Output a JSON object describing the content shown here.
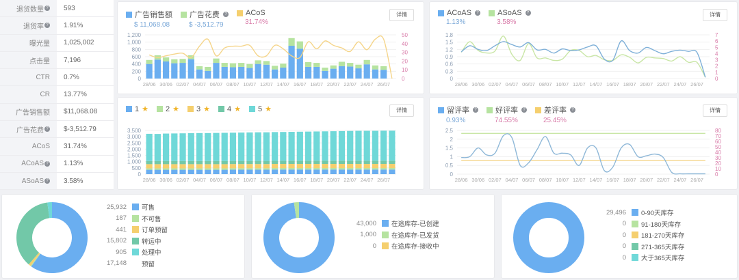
{
  "metrics": [
    {
      "label": "退货数量",
      "value": "593",
      "help": true
    },
    {
      "label": "退货率",
      "value": "1.91%",
      "help": true
    },
    {
      "label": "曝光量",
      "value": "1,025,002",
      "help": false
    },
    {
      "label": "点击量",
      "value": "7,196",
      "help": false
    },
    {
      "label": "CTR",
      "value": "0.7%",
      "help": false
    },
    {
      "label": "CR",
      "value": "13.77%",
      "help": false
    },
    {
      "label": "广告销售额",
      "value": "$11,068.08",
      "help": false
    },
    {
      "label": "广告花费",
      "value": "$-3,512.79",
      "help": true
    },
    {
      "label": "ACoS",
      "value": "31.74%",
      "help": false
    },
    {
      "label": "ACoAS",
      "value": "1.13%",
      "help": true
    },
    {
      "label": "ASoAS",
      "value": "3.58%",
      "help": true
    }
  ],
  "detail_label": "详情",
  "help_glyph": "?",
  "colors": {
    "blue": "#6aaef0",
    "green": "#b6e3a0",
    "yellow": "#f5cf6e",
    "teal": "#72c8a8",
    "cyan": "#6fd8d8",
    "axis_right": "#d87aa8",
    "axis_left": "#8a9bb0"
  },
  "ad_panel": {
    "legend": [
      {
        "label": "广告销售额",
        "value": "$ 11,068.08",
        "color": "#6aaef0",
        "value_color": "#7aa8d8",
        "help": false
      },
      {
        "label": "广告花费",
        "value": "$ -3,512.79",
        "color": "#b6e3a0",
        "value_color": "#7aa8d8",
        "help": true
      },
      {
        "label": "ACoS",
        "value": "31.74%",
        "color": "#f5cf6e",
        "value_color": "#d87aa8",
        "help": false
      }
    ]
  },
  "acoas_panel": {
    "legend": [
      {
        "label": "ACoAS",
        "value": "1.13%",
        "color": "#6aaef0",
        "value_color": "#7aa8d8",
        "help": true
      },
      {
        "label": "ASoAS",
        "value": "3.58%",
        "color": "#b6e3a0",
        "value_color": "#d87aa8",
        "help": true
      }
    ]
  },
  "star_panel": {
    "legend": [
      {
        "label": "1",
        "color": "#6aaef0"
      },
      {
        "label": "2",
        "color": "#b6e3a0"
      },
      {
        "label": "3",
        "color": "#f5cf6e"
      },
      {
        "label": "4",
        "color": "#72c8a8"
      },
      {
        "label": "5",
        "color": "#6fd8d8"
      }
    ],
    "star_glyph": "★"
  },
  "review_panel": {
    "legend": [
      {
        "label": "留评率",
        "value": "0.93%",
        "color": "#6aaef0",
        "value_color": "#7aa8d8",
        "help": true
      },
      {
        "label": "好评率",
        "value": "74.55%",
        "color": "#b6e3a0",
        "value_color": "#d87aa8",
        "help": true
      },
      {
        "label": "差评率",
        "value": "25.45%",
        "color": "#f5cf6e",
        "value_color": "#d87aa8",
        "help": true
      }
    ]
  },
  "inventory_pie": {
    "items": [
      {
        "num": "25,932",
        "label": "可售",
        "color": "#6aaef0"
      },
      {
        "num": "187",
        "label": "不可售",
        "color": "#b6e3a0"
      },
      {
        "num": "441",
        "label": "订单预留",
        "color": "#f5cf6e"
      },
      {
        "num": "15,802",
        "label": "转运中",
        "color": "#72c8a8"
      },
      {
        "num": "905",
        "label": "处理中",
        "color": "#6fd8d8"
      },
      {
        "num": "17,148",
        "label": "预留",
        "color": "transparent"
      }
    ]
  },
  "inbound_pie": {
    "items": [
      {
        "num": "43,000",
        "label": "在途库存-已创建",
        "color": "#6aaef0"
      },
      {
        "num": "1,000",
        "label": "在途库存-已发货",
        "color": "#b6e3a0"
      },
      {
        "num": "0",
        "label": "在途库存-接收中",
        "color": "#f5cf6e"
      }
    ]
  },
  "age_pie": {
    "items": [
      {
        "num": "29,496",
        "label": "0-90天库存",
        "color": "#6aaef0"
      },
      {
        "num": "0",
        "label": "91-180天库存",
        "color": "#b6e3a0"
      },
      {
        "num": "0",
        "label": "181-270天库存",
        "color": "#f5cf6e"
      },
      {
        "num": "0",
        "label": "271-365天库存",
        "color": "#72c8a8"
      },
      {
        "num": "0",
        "label": "大于365天库存",
        "color": "#6fd8d8"
      }
    ]
  },
  "chart_data": [
    {
      "type": "bar",
      "title": "广告销售额 / 广告花费 / ACoS",
      "stacked": true,
      "x": [
        "28/06",
        "29/06",
        "30/06",
        "01/07",
        "02/07",
        "03/07",
        "04/07",
        "05/07",
        "06/07",
        "07/07",
        "08/07",
        "09/07",
        "10/07",
        "11/07",
        "12/07",
        "13/07",
        "14/07",
        "15/07",
        "16/07",
        "17/07",
        "18/07",
        "19/07",
        "20/07",
        "21/07",
        "22/07",
        "23/07",
        "24/07",
        "25/07",
        "26/07",
        "27/07"
      ],
      "xticks": [
        "28/06",
        "30/06",
        "02/07",
        "04/07",
        "06/07",
        "08/07",
        "10/07",
        "12/07",
        "14/07",
        "16/07",
        "18/07",
        "20/07",
        "22/07",
        "24/07",
        "26/07"
      ],
      "series": [
        {
          "name": "广告销售额",
          "axis": "left",
          "values": [
            400,
            520,
            470,
            420,
            430,
            530,
            250,
            210,
            430,
            320,
            310,
            320,
            290,
            400,
            380,
            250,
            300,
            900,
            820,
            320,
            320,
            210,
            270,
            340,
            330,
            280,
            390,
            250,
            240,
            0
          ]
        },
        {
          "name": "广告花费",
          "axis": "left",
          "values": [
            110,
            120,
            110,
            110,
            110,
            110,
            90,
            110,
            120,
            110,
            110,
            110,
            110,
            100,
            100,
            100,
            110,
            210,
            200,
            130,
            110,
            90,
            90,
            120,
            100,
            100,
            120,
            110,
            100,
            0
          ]
        },
        {
          "name": "ACoS",
          "axis": "right",
          "type": "line",
          "values": [
            27,
            24,
            26,
            28,
            29,
            24,
            37,
            45,
            26,
            35,
            37,
            37,
            38,
            26,
            26,
            38,
            34,
            26,
            24,
            42,
            34,
            43,
            38,
            35,
            31,
            42,
            33,
            45,
            45,
            0
          ]
        }
      ],
      "ylim_left": [
        0,
        1200
      ],
      "yticks_left": [
        0,
        200,
        400,
        600,
        800,
        1000,
        1200
      ],
      "ylim_right": [
        0,
        50
      ],
      "yticks_right": [
        0,
        10,
        20,
        30,
        40,
        50
      ]
    },
    {
      "type": "line",
      "title": "ACoAS / ASoAS",
      "x": [
        "28/06",
        "29/06",
        "30/06",
        "01/07",
        "02/07",
        "03/07",
        "04/07",
        "05/07",
        "06/07",
        "07/07",
        "08/07",
        "09/07",
        "10/07",
        "11/07",
        "12/07",
        "13/07",
        "14/07",
        "15/07",
        "16/07",
        "17/07",
        "18/07",
        "19/07",
        "20/07",
        "21/07",
        "22/07",
        "23/07",
        "24/07",
        "25/07",
        "26/07",
        "27/07"
      ],
      "series": [
        {
          "name": "ACoAS",
          "axis": "left",
          "values": [
            1.1,
            1.35,
            1.2,
            1.15,
            1.35,
            1.52,
            1.4,
            1.3,
            1.48,
            1.18,
            1.2,
            1.05,
            1.22,
            1.15,
            1.18,
            1.3,
            1.35,
            0.8,
            0.75,
            1.55,
            1.15,
            1.05,
            1.28,
            1.15,
            1.02,
            1.12,
            1.17,
            1.12,
            1.08,
            0.05
          ]
        },
        {
          "name": "ASoAS",
          "axis": "right",
          "values": [
            4.2,
            5.9,
            4.5,
            4.1,
            4.4,
            6.8,
            3.9,
            2.9,
            5.6,
            3.3,
            3.3,
            2.9,
            3.1,
            4.5,
            4.5,
            3.5,
            3.7,
            3.0,
            2.9,
            3.8,
            3.4,
            2.5,
            3.4,
            3.3,
            3.2,
            2.8,
            3.5,
            2.6,
            2.6,
            0.2
          ]
        }
      ],
      "ylim_left": [
        0,
        1.8
      ],
      "yticks_left": [
        0,
        0.3,
        0.6,
        0.9,
        1.2,
        1.5,
        1.8
      ],
      "ylim_right": [
        0,
        7
      ],
      "yticks_right": [
        0,
        1,
        2,
        3,
        4,
        5,
        6,
        7
      ]
    },
    {
      "type": "bar",
      "title": "Star ratings",
      "stacked": true,
      "x": [
        "28/06",
        "29/06",
        "30/06",
        "01/07",
        "02/07",
        "03/07",
        "04/07",
        "05/07",
        "06/07",
        "07/07",
        "08/07",
        "09/07",
        "10/07",
        "11/07",
        "12/07",
        "13/07",
        "14/07",
        "15/07",
        "16/07",
        "17/07",
        "18/07",
        "19/07",
        "20/07",
        "21/07",
        "22/07",
        "23/07",
        "24/07",
        "25/07",
        "26/07",
        "27/07"
      ],
      "series": [
        {
          "name": "1★",
          "values": [
            350,
            350,
            350,
            350,
            350,
            350,
            350,
            350,
            350,
            350,
            360,
            360,
            360,
            360,
            360,
            370,
            370,
            370,
            370,
            370,
            370,
            370,
            370,
            370,
            370,
            370,
            370,
            370,
            370,
            370
          ]
        },
        {
          "name": "2★",
          "values": [
            120,
            120,
            120,
            120,
            120,
            120,
            120,
            120,
            120,
            120,
            120,
            120,
            120,
            120,
            120,
            120,
            120,
            120,
            120,
            120,
            120,
            120,
            120,
            120,
            120,
            120,
            120,
            120,
            120,
            120
          ]
        },
        {
          "name": "3★",
          "values": [
            330,
            330,
            330,
            330,
            330,
            330,
            330,
            330,
            330,
            330,
            330,
            330,
            330,
            330,
            330,
            330,
            330,
            330,
            330,
            330,
            330,
            330,
            330,
            330,
            330,
            330,
            330,
            330,
            330,
            330
          ]
        },
        {
          "name": "4★",
          "values": [
            250,
            250,
            250,
            250,
            250,
            250,
            250,
            250,
            250,
            250,
            250,
            250,
            250,
            250,
            250,
            250,
            260,
            260,
            260,
            260,
            260,
            260,
            260,
            260,
            260,
            260,
            260,
            260,
            260,
            260
          ]
        },
        {
          "name": "5★",
          "values": [
            2180,
            2170,
            2200,
            2210,
            2220,
            2230,
            2240,
            2240,
            2250,
            2260,
            2260,
            2270,
            2280,
            2290,
            2290,
            2300,
            2300,
            2310,
            2320,
            2330,
            2340,
            2350,
            2360,
            2370,
            2380,
            2390,
            2390,
            2390,
            2400,
            2400
          ]
        }
      ],
      "ylim": [
        0,
        3500
      ],
      "yticks": [
        0,
        500,
        1000,
        1500,
        2000,
        2500,
        3000,
        3500
      ]
    },
    {
      "type": "line",
      "title": "留评率 / 好评率 / 差评率",
      "x": [
        "28/06",
        "29/06",
        "30/06",
        "01/07",
        "02/07",
        "03/07",
        "04/07",
        "05/07",
        "06/07",
        "07/07",
        "08/07",
        "09/07",
        "10/07",
        "11/07",
        "12/07",
        "13/07",
        "14/07",
        "15/07",
        "16/07",
        "17/07",
        "18/07",
        "19/07",
        "20/07",
        "21/07",
        "22/07",
        "23/07",
        "24/07",
        "25/07",
        "26/07",
        "27/07"
      ],
      "series": [
        {
          "name": "留评率",
          "axis": "left",
          "values": [
            0.95,
            1.0,
            1.5,
            1.1,
            1.2,
            2.2,
            2.1,
            0.5,
            0.65,
            1.4,
            2.15,
            1.2,
            1.2,
            1.1,
            0.5,
            1.5,
            1.5,
            0.2,
            0.4,
            1.5,
            1.7,
            1.0,
            1.05,
            1.15,
            0.95,
            0.1,
            0.02,
            0.02,
            0.02,
            0.02
          ]
        },
        {
          "name": "好评率",
          "axis": "right",
          "values": [
            74.55,
            74.55,
            74.55,
            74.55,
            74.55,
            74.55,
            74.55,
            74.55,
            74.55,
            74.55,
            74.55,
            74.55,
            74.55,
            74.55,
            74.55,
            74.55,
            74.55,
            74.55,
            74.55,
            74.55,
            74.55,
            74.55,
            74.55,
            74.55,
            74.55,
            74.55,
            74.55,
            74.55,
            74.55,
            74.55
          ]
        },
        {
          "name": "差评率",
          "axis": "right",
          "values": [
            25.45,
            25.45,
            25.45,
            25.45,
            25.45,
            25.45,
            25.45,
            25.45,
            25.45,
            25.45,
            25.45,
            25.45,
            25.45,
            25.45,
            25.45,
            25.45,
            25.45,
            25.45,
            25.45,
            25.45,
            25.45,
            25.45,
            25.45,
            25.45,
            25.45,
            25.45,
            25.45,
            25.45,
            25.45,
            25.45
          ]
        }
      ],
      "ylim_left": [
        0,
        2.5
      ],
      "yticks_left": [
        0,
        0.5,
        1,
        1.5,
        2,
        2.5
      ],
      "ylim_right": [
        0,
        80
      ],
      "yticks_right": [
        0,
        10,
        20,
        30,
        40,
        50,
        60,
        70,
        80
      ]
    },
    {
      "type": "pie",
      "title": "库存状态",
      "categories": [
        "可售",
        "不可售",
        "订单预留",
        "转运中",
        "处理中",
        "预留"
      ],
      "values": [
        25932,
        187,
        441,
        15802,
        905,
        17148
      ]
    },
    {
      "type": "pie",
      "title": "在途库存",
      "categories": [
        "在途库存-已创建",
        "在途库存-已发货",
        "在途库存-接收中"
      ],
      "values": [
        43000,
        1000,
        0
      ]
    },
    {
      "type": "pie",
      "title": "库龄",
      "categories": [
        "0-90天库存",
        "91-180天库存",
        "181-270天库存",
        "271-365天库存",
        "大于365天库存"
      ],
      "values": [
        29496,
        0,
        0,
        0,
        0
      ]
    }
  ]
}
